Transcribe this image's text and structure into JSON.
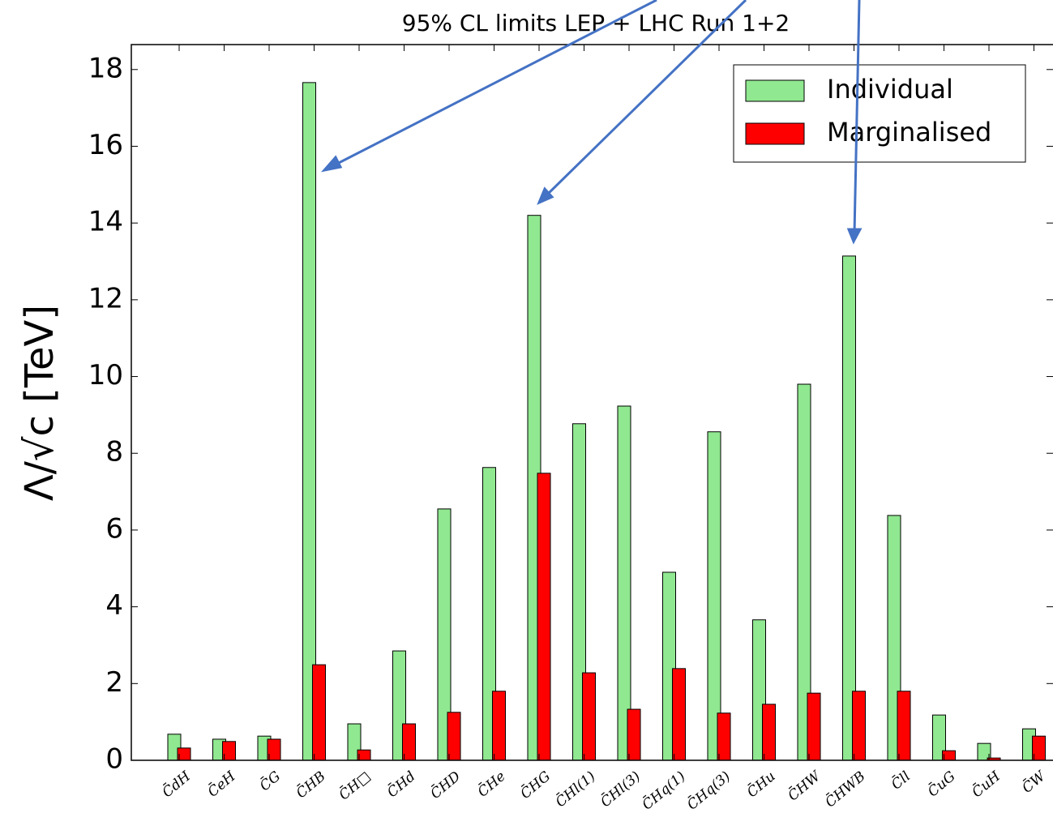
{
  "chart_data": {
    "type": "bar",
    "title": "95% CL limits LEP + LHC Run 1+2",
    "y_label": "Λ/√c [TeV]",
    "categories": [
      "C̄dH",
      "C̄eH",
      "C̄G",
      "C̄HB",
      "C̄H□",
      "C̄Hd",
      "C̄HD",
      "C̄He",
      "C̄HG",
      "C̄Hl(1)",
      "C̄Hl(3)",
      "C̄Hq(1)",
      "C̄Hq(3)",
      "C̄Hu",
      "C̄HW",
      "C̄HWB",
      "C̄ll",
      "C̄uG",
      "C̄uH",
      "C̄W"
    ],
    "series": [
      {
        "name": "Individual",
        "color": "#90e890",
        "values": [
          0.68,
          0.55,
          0.63,
          17.66,
          0.95,
          2.85,
          6.55,
          7.63,
          14.2,
          8.77,
          9.23,
          4.9,
          8.56,
          3.66,
          9.8,
          13.14,
          6.38,
          1.18,
          0.44,
          0.82
        ]
      },
      {
        "name": "Marginalised",
        "color": "#ff0000",
        "values": [
          0.32,
          0.49,
          0.55,
          2.49,
          0.27,
          0.95,
          1.25,
          1.8,
          7.48,
          2.28,
          1.33,
          2.39,
          1.23,
          1.46,
          1.75,
          1.8,
          1.8,
          0.25,
          0.06,
          0.63
        ]
      }
    ],
    "ylim": [
      0,
      18.65
    ],
    "yticks": [
      0,
      2,
      4,
      6,
      8,
      10,
      12,
      14,
      16,
      18
    ],
    "legend": "upper right"
  }
}
